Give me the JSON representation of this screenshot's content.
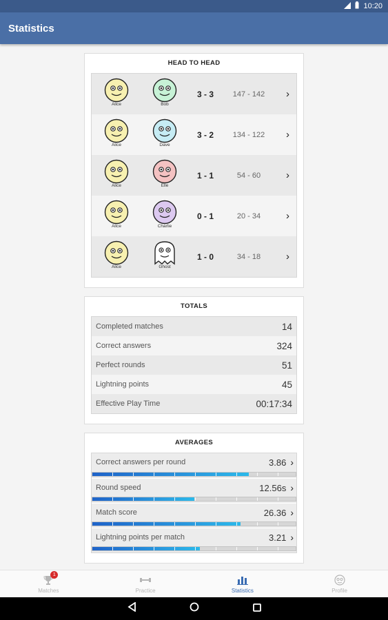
{
  "status_bar": {
    "time": "10:20"
  },
  "app_bar": {
    "title": "Statistics"
  },
  "head_to_head": {
    "title": "HEAD TO HEAD",
    "rows": [
      {
        "player": "Alice",
        "player_color": "#f7f0b0",
        "opponent": "Bob",
        "opponent_color": "#c7f2d6",
        "score": "3 - 3",
        "points": "147 - 142"
      },
      {
        "player": "Alice",
        "player_color": "#f7f0b0",
        "opponent": "Dave",
        "opponent_color": "#c6ecf4",
        "score": "3 - 2",
        "points": "134 - 122"
      },
      {
        "player": "Alice",
        "player_color": "#f7f0b0",
        "opponent": "Elle",
        "opponent_color": "#f4c2c2",
        "score": "1 - 1",
        "points": "54 - 60"
      },
      {
        "player": "Alice",
        "player_color": "#f7f0b0",
        "opponent": "Charlie",
        "opponent_color": "#dcc9f0",
        "score": "0 - 1",
        "points": "20 - 34"
      },
      {
        "player": "Alice",
        "player_color": "#f7f0b0",
        "opponent": "Ghost",
        "opponent_color": "#ffffff",
        "score": "1 - 0",
        "points": "34 - 18"
      }
    ]
  },
  "totals": {
    "title": "TOTALS",
    "rows": [
      {
        "label": "Completed matches",
        "value": "14"
      },
      {
        "label": "Correct answers",
        "value": "324"
      },
      {
        "label": "Perfect rounds",
        "value": "51"
      },
      {
        "label": "Lightning points",
        "value": "45"
      },
      {
        "label": "Effective Play Time",
        "value": "00:17:34"
      }
    ]
  },
  "averages": {
    "title": "AVERAGES",
    "rows": [
      {
        "label": "Correct answers per round",
        "value": "3.86",
        "level": 0.77
      },
      {
        "label": "Round speed",
        "value": "12.56s",
        "level": 0.5
      },
      {
        "label": "Match score",
        "value": "26.36",
        "level": 0.73
      },
      {
        "label": "Lightning points per match",
        "value": "3.21",
        "level": 0.53
      }
    ]
  },
  "bottom_nav": {
    "items": [
      {
        "label": "Matches",
        "icon": "trophy-icon",
        "badge": "1",
        "active": false
      },
      {
        "label": "Practice",
        "icon": "dumbbell-icon",
        "active": false
      },
      {
        "label": "Statistics",
        "icon": "bar-chart-icon",
        "active": true
      },
      {
        "label": "Profile",
        "icon": "profile-face-icon",
        "active": false
      }
    ]
  },
  "colors": {
    "app_bar": "#4a6fa6",
    "status_bar": "#3b5a8a",
    "accent": "#3a6cb2",
    "badge": "#d62b2b"
  }
}
